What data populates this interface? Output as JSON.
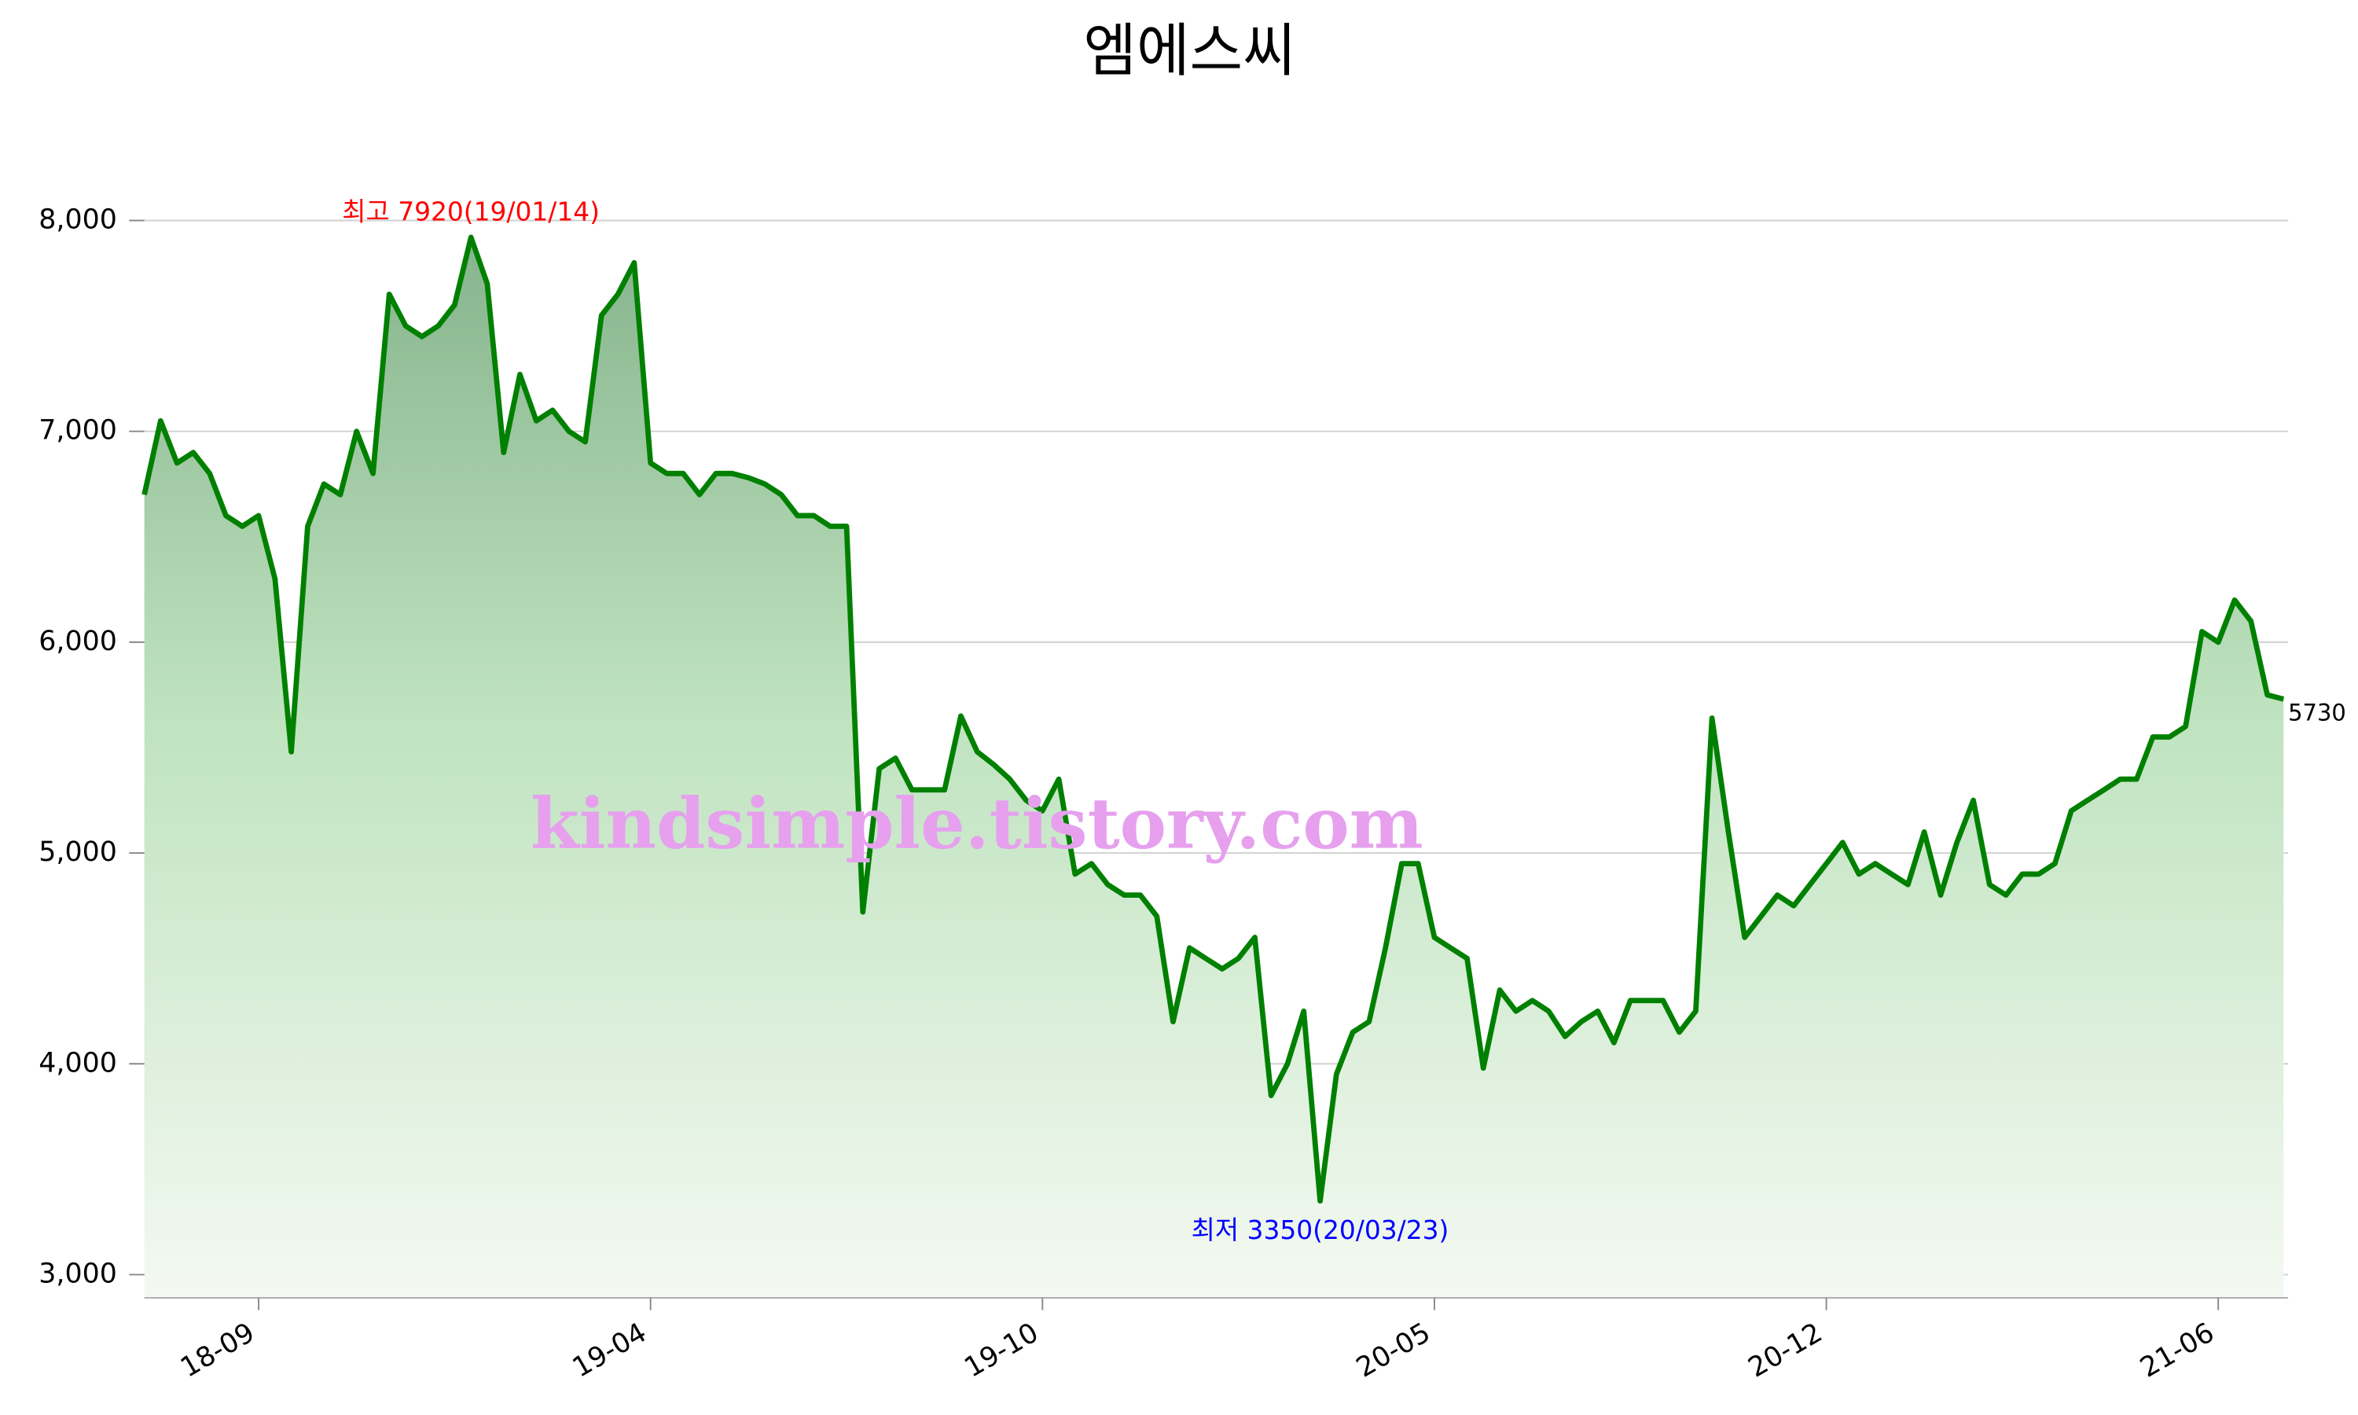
{
  "chart_data": {
    "type": "line",
    "title": "엠에스씨",
    "watermark": "kindsimple.tistory.com",
    "categories": [
      null,
      null,
      null,
      null,
      null,
      null,
      null,
      "18-09",
      null,
      null,
      null,
      null,
      null,
      null,
      null,
      null,
      null,
      null,
      null,
      null,
      null,
      null,
      null,
      null,
      null,
      null,
      null,
      null,
      null,
      null,
      null,
      "19-04",
      null,
      null,
      null,
      null,
      null,
      null,
      null,
      null,
      null,
      null,
      null,
      null,
      null,
      null,
      null,
      null,
      null,
      null,
      null,
      null,
      null,
      null,
      null,
      "19-10",
      null,
      null,
      null,
      null,
      null,
      null,
      null,
      null,
      null,
      null,
      null,
      null,
      null,
      null,
      null,
      null,
      null,
      null,
      null,
      null,
      null,
      null,
      null,
      "20-05",
      null,
      null,
      null,
      null,
      null,
      null,
      null,
      null,
      null,
      null,
      null,
      null,
      null,
      null,
      null,
      null,
      null,
      null,
      null,
      null,
      null,
      null,
      null,
      "20-12",
      null,
      null,
      null,
      null,
      null,
      null,
      null,
      null,
      null,
      null,
      null,
      null,
      null,
      null,
      null,
      null,
      null,
      null,
      null,
      null,
      null,
      null,
      null,
      "21-06",
      null,
      null,
      null,
      null
    ],
    "series": [
      {
        "color": "#008000",
        "values": [
          6700,
          7050,
          6850,
          6900,
          6800,
          6600,
          6550,
          6600,
          6300,
          5480,
          6550,
          6750,
          6700,
          7000,
          6800,
          7650,
          7500,
          7450,
          7500,
          7600,
          7920,
          7700,
          6900,
          7270,
          7050,
          7100,
          7000,
          6950,
          7550,
          7650,
          7800,
          6850,
          6800,
          6800,
          6700,
          6800,
          6800,
          6780,
          6750,
          6700,
          6600,
          6600,
          6550,
          6550,
          4720,
          5400,
          5450,
          5300,
          5300,
          5300,
          5650,
          5480,
          5420,
          5350,
          5250,
          5200,
          5350,
          4900,
          4950,
          4850,
          4800,
          4800,
          4700,
          4200,
          4550,
          4500,
          4450,
          4500,
          4600,
          3850,
          4000,
          4250,
          3350,
          3950,
          4150,
          4200,
          4550,
          4950,
          4950,
          4600,
          4550,
          4500,
          3980,
          4350,
          4250,
          4300,
          4250,
          4130,
          4200,
          4250,
          4100,
          4300,
          4300,
          4300,
          4150,
          4250,
          5640,
          5100,
          4600,
          4700,
          4800,
          4750,
          4850,
          4950,
          5050,
          4900,
          4950,
          4900,
          4850,
          5100,
          4800,
          5050,
          5250,
          4850,
          4800,
          4900,
          4900,
          4950,
          5200,
          5250,
          5300,
          5350,
          5350,
          5550,
          5550,
          5600,
          6050,
          6000,
          6200,
          6100,
          5750,
          5730
        ]
      }
    ],
    "annotations": [
      {
        "text": "최고 7920(19/01/14)",
        "color": "#ff0000",
        "index": 20
      },
      {
        "text": "최저 3350(20/03/23)",
        "color": "#0000ff",
        "index": 72
      }
    ],
    "ylim": [
      2890,
      8320
    ],
    "yticks": [
      {
        "value": 3000,
        "label": "3,000"
      },
      {
        "value": 4000,
        "label": "4,000"
      },
      {
        "value": 5000,
        "label": "5,000"
      },
      {
        "value": 6000,
        "label": "6,000"
      },
      {
        "value": 7000,
        "label": "7,000"
      },
      {
        "value": 8000,
        "label": "8,000"
      }
    ],
    "grid": true
  }
}
